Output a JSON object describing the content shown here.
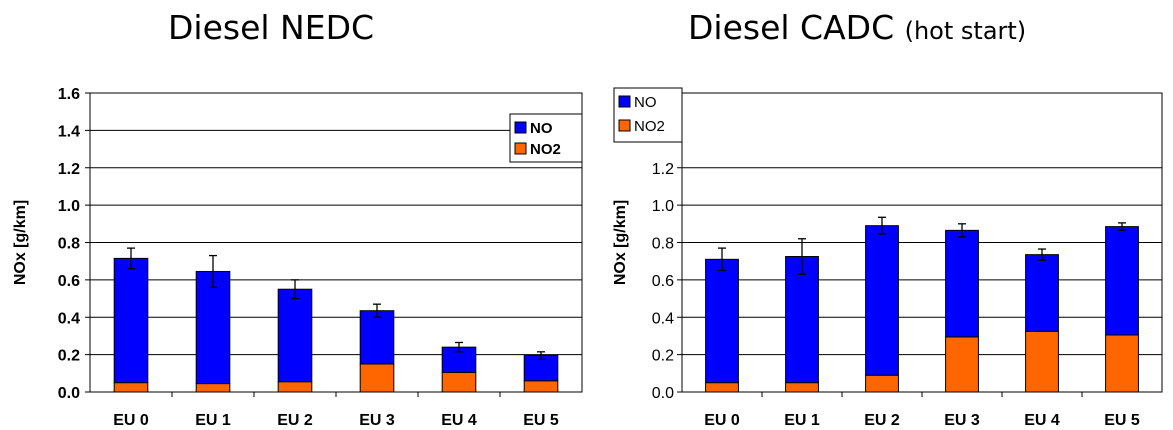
{
  "chart_data": [
    {
      "type": "bar",
      "stacked": true,
      "title": "Diesel NEDC",
      "subtitle": "",
      "ylabel": "NOx [g/km]",
      "xlabel": "",
      "categories": [
        "EU 0",
        "EU 1",
        "EU 2",
        "EU 3",
        "EU 4",
        "EU 5"
      ],
      "ylim": [
        0,
        1.6
      ],
      "yticks": [
        "0.0",
        "0.2",
        "0.4",
        "0.6",
        "0.8",
        "1.0",
        "1.2",
        "1.4",
        "1.6"
      ],
      "ytick_bold": true,
      "series": [
        {
          "name": "NO2",
          "color": "#FF6600",
          "values": [
            0.05,
            0.045,
            0.055,
            0.15,
            0.105,
            0.06
          ]
        },
        {
          "name": "NO",
          "color": "#0000FF",
          "values": [
            0.665,
            0.6,
            0.495,
            0.285,
            0.135,
            0.135
          ]
        }
      ],
      "error_bars": [
        0.055,
        0.085,
        0.05,
        0.035,
        0.025,
        0.02
      ],
      "legend": {
        "placement": "top-right",
        "bold": true,
        "entries": [
          "NO",
          "NO2"
        ]
      },
      "grid": true
    },
    {
      "type": "bar",
      "stacked": true,
      "title": "Diesel CADC",
      "subtitle": "(hot start)",
      "ylabel": "NOx [g/km]",
      "xlabel": "",
      "categories": [
        "EU 0",
        "EU 1",
        "EU 2",
        "EU 3",
        "EU 4",
        "EU 5"
      ],
      "ylim": [
        0,
        1.6
      ],
      "yticks": [
        "0.0",
        "0.2",
        "0.4",
        "0.6",
        "0.8",
        "1.0",
        "1.2"
      ],
      "ytick_bold": false,
      "series": [
        {
          "name": "NO2",
          "color": "#FF6600",
          "values": [
            0.05,
            0.05,
            0.09,
            0.295,
            0.325,
            0.305
          ]
        },
        {
          "name": "NO",
          "color": "#0000FF",
          "values": [
            0.66,
            0.675,
            0.8,
            0.57,
            0.41,
            0.58
          ]
        }
      ],
      "error_bars": [
        0.06,
        0.095,
        0.045,
        0.035,
        0.03,
        0.02
      ],
      "legend": {
        "placement": "top-left",
        "bold": false,
        "entries": [
          "NO",
          "NO2"
        ]
      },
      "grid": true
    }
  ]
}
